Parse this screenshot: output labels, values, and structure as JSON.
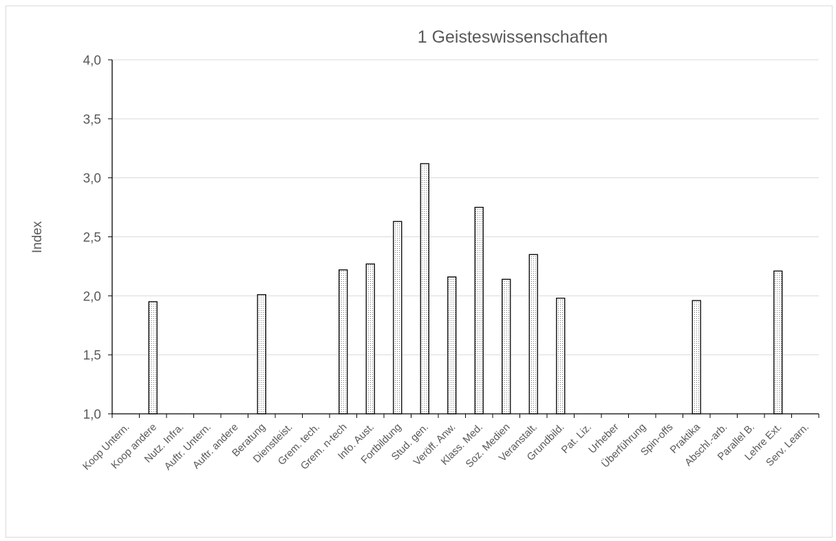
{
  "chart_data": {
    "type": "bar",
    "title": "1 Geisteswissenschaften",
    "xlabel": "",
    "ylabel": "Index",
    "ylim": [
      1.0,
      4.0
    ],
    "yticks": [
      "1,0",
      "1,5",
      "2,0",
      "2,5",
      "3,0",
      "3,5",
      "4,0"
    ],
    "grid": true,
    "categories": [
      "Koop Untern.",
      "Koop andere",
      "Nutz. Infra.",
      "Auftr. Untern.",
      "Auftr. andere",
      "Beratung",
      "Dienstleist.",
      "Grem. tech.",
      "Grem. n-tech",
      "Info. Aust.",
      "Fortbildung",
      "Stud. gen.",
      "Veröff. Anw.",
      "Klass. Med.",
      "Soz. Medien",
      "Veranstalt.",
      "Grundbild.",
      "Pat. Liz.",
      "Urheber",
      "Überführung",
      "Spin-offs",
      "Praktika",
      "Abschl.-arb.",
      "Parallel B.",
      "Lehre Ext.",
      "Serv. Learn."
    ],
    "values": [
      null,
      1.95,
      null,
      null,
      null,
      2.01,
      null,
      null,
      2.22,
      2.27,
      2.63,
      3.12,
      2.16,
      2.75,
      2.14,
      2.35,
      1.98,
      null,
      null,
      null,
      null,
      1.96,
      null,
      null,
      2.21,
      null
    ],
    "bar_pattern": "dotted",
    "bar_color": "#000000"
  }
}
